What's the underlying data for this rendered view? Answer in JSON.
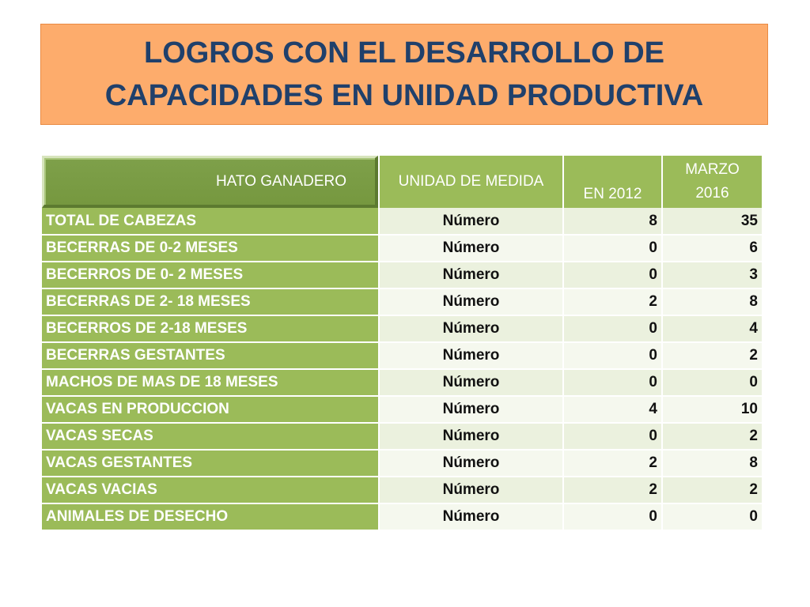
{
  "title": "LOGROS CON EL DESARROLLO DE\nCAPACIDADES EN UNIDAD PRODUCTIVA",
  "table": {
    "headers": {
      "category": "HATO GANADERO",
      "unit": "UNIDAD DE MEDIDA",
      "year_2012": "EN 2012",
      "marzo_line1": "MARZO",
      "marzo_line2": "2016"
    },
    "rows": [
      {
        "category": "TOTAL DE CABEZAS",
        "unit": "Número",
        "v2012": "8",
        "v2016": "35"
      },
      {
        "category": "BECERRAS DE 0-2 MESES",
        "unit": "Número",
        "v2012": "0",
        "v2016": "6"
      },
      {
        "category": "BECERROS DE 0- 2 MESES",
        "unit": "Número",
        "v2012": "0",
        "v2016": "3"
      },
      {
        "category": "BECERRAS DE 2- 18 MESES",
        "unit": "Número",
        "v2012": "2",
        "v2016": "8"
      },
      {
        "category": "BECERROS DE 2-18 MESES",
        "unit": "Número",
        "v2012": "0",
        "v2016": "4"
      },
      {
        "category": "BECERRAS GESTANTES",
        "unit": "Número",
        "v2012": "0",
        "v2016": "2"
      },
      {
        "category": "MACHOS DE MAS DE 18 MESES",
        "unit": "Número",
        "v2012": "0",
        "v2016": "0"
      },
      {
        "category": "VACAS EN PRODUCCION",
        "unit": "Número",
        "v2012": "4",
        "v2016": "10"
      },
      {
        "category": "VACAS SECAS",
        "unit": "Número",
        "v2012": "0",
        "v2016": "2"
      },
      {
        "category": "VACAS GESTANTES",
        "unit": "Número",
        "v2012": "2",
        "v2016": "8"
      },
      {
        "category": "VACAS VACIAS",
        "unit": "Número",
        "v2012": "2",
        "v2016": "2"
      },
      {
        "category": "ANIMALES DE DESECHO",
        "unit": "Número",
        "v2012": "0",
        "v2016": "0"
      }
    ]
  },
  "colors": {
    "title_bg": "#fdac6c",
    "title_text": "#20406b",
    "header_green": "#9bbb59",
    "cell_light": "#ebf1de"
  }
}
